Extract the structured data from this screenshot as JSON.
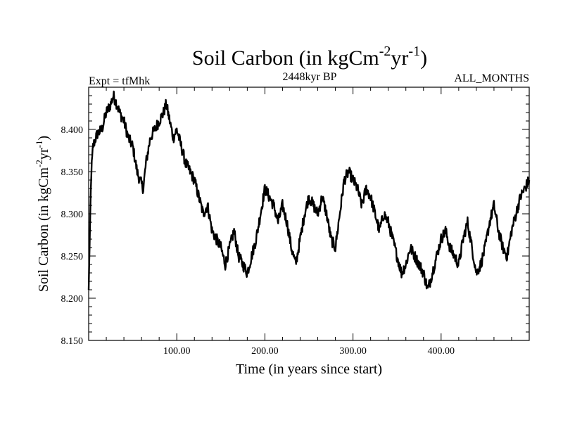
{
  "chart_data": {
    "type": "line",
    "title_main": "Soil Carbon (in kgCm",
    "title_sup1": "-2",
    "title_mid": "yr",
    "title_sup2": "-1",
    "title_end": ")",
    "left_label": "Expt = tfMhk",
    "center_label": "2448kyr BP",
    "right_label": "ALL_MONTHS",
    "xlabel": "Time (in years since start)",
    "ylabel_main": "Soil Carbon (in kgCm",
    "ylabel_sup1": "-2",
    "ylabel_mid": "yr",
    "ylabel_sup2": "-1",
    "ylabel_end": ")",
    "xlim": [
      0,
      500
    ],
    "ylim": [
      8.15,
      8.45
    ],
    "x_ticks": [
      {
        "value": 100,
        "label": "100.00"
      },
      {
        "value": 200,
        "label": "200.00"
      },
      {
        "value": 300,
        "label": "300.00"
      },
      {
        "value": 400,
        "label": "400.00"
      }
    ],
    "y_ticks": [
      {
        "value": 8.15,
        "label": "8.150"
      },
      {
        "value": 8.2,
        "label": "8.200"
      },
      {
        "value": 8.25,
        "label": "8.250"
      },
      {
        "value": 8.3,
        "label": "8.300"
      },
      {
        "value": 8.35,
        "label": "8.350"
      },
      {
        "value": 8.4,
        "label": "8.400"
      }
    ],
    "line_color": "#000000",
    "series": [
      {
        "name": "Soil Carbon",
        "x": [
          0,
          1,
          2,
          3,
          5,
          8,
          10,
          15,
          20,
          25,
          28,
          32,
          35,
          40,
          45,
          50,
          55,
          58,
          62,
          65,
          70,
          75,
          80,
          85,
          88,
          92,
          96,
          100,
          105,
          110,
          115,
          120,
          125,
          130,
          135,
          140,
          145,
          150,
          155,
          160,
          165,
          170,
          175,
          180,
          185,
          190,
          195,
          200,
          205,
          210,
          215,
          220,
          225,
          230,
          235,
          240,
          245,
          250,
          255,
          260,
          265,
          270,
          275,
          280,
          285,
          290,
          295,
          300,
          305,
          310,
          315,
          320,
          325,
          330,
          335,
          340,
          345,
          350,
          355,
          360,
          365,
          370,
          375,
          380,
          385,
          390,
          395,
          400,
          405,
          410,
          415,
          420,
          425,
          430,
          435,
          440,
          445,
          450,
          455,
          460,
          465,
          470,
          475,
          480,
          485,
          490,
          495,
          500
        ],
        "y": [
          8.21,
          8.26,
          8.31,
          8.35,
          8.38,
          8.39,
          8.395,
          8.4,
          8.42,
          8.43,
          8.44,
          8.43,
          8.42,
          8.41,
          8.39,
          8.38,
          8.35,
          8.34,
          8.33,
          8.36,
          8.39,
          8.4,
          8.41,
          8.42,
          8.43,
          8.41,
          8.39,
          8.4,
          8.38,
          8.36,
          8.35,
          8.34,
          8.32,
          8.3,
          8.31,
          8.28,
          8.27,
          8.26,
          8.24,
          8.26,
          8.28,
          8.25,
          8.24,
          8.23,
          8.25,
          8.27,
          8.3,
          8.33,
          8.32,
          8.31,
          8.29,
          8.31,
          8.29,
          8.26,
          8.24,
          8.27,
          8.3,
          8.32,
          8.31,
          8.3,
          8.32,
          8.3,
          8.27,
          8.26,
          8.3,
          8.34,
          8.35,
          8.34,
          8.33,
          8.31,
          8.33,
          8.32,
          8.3,
          8.28,
          8.3,
          8.29,
          8.27,
          8.25,
          8.23,
          8.24,
          8.26,
          8.25,
          8.24,
          8.23,
          8.21,
          8.23,
          8.25,
          8.27,
          8.28,
          8.26,
          8.25,
          8.24,
          8.27,
          8.29,
          8.26,
          8.23,
          8.24,
          8.26,
          8.29,
          8.31,
          8.28,
          8.26,
          8.25,
          8.28,
          8.3,
          8.32,
          8.33,
          8.34
        ]
      }
    ]
  }
}
